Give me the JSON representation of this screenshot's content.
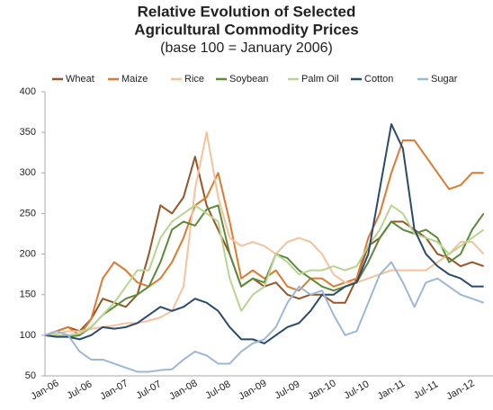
{
  "chart_data": {
    "type": "line",
    "title_lines": [
      "Relative Evolution of Selected",
      "Agricultural Commodity Prices"
    ],
    "subtitle": "(base 100 = January 2006)",
    "categories": [
      "Jan-06",
      null,
      null,
      "Jul-06",
      null,
      null,
      "Jan-07",
      null,
      null,
      "Jul-07",
      null,
      null,
      "Jan-08",
      null,
      null,
      "Jul-08",
      null,
      null,
      "Jan-09",
      null,
      null,
      "Jul-09",
      null,
      null,
      "Jan-10",
      null,
      null,
      "Jul-10",
      null,
      null,
      "Jan-11",
      null,
      null,
      "Jul-11",
      null,
      null,
      "Jan-12",
      null,
      null
    ],
    "ylim": [
      50,
      400
    ],
    "yticks": [
      50,
      100,
      150,
      200,
      250,
      300,
      350,
      400
    ],
    "grid": false,
    "legend": "top",
    "series": [
      {
        "name": "Wheat",
        "color": "#9a5424",
        "values": [
          100,
          105,
          110,
          105,
          120,
          145,
          140,
          135,
          150,
          200,
          260,
          250,
          270,
          320,
          260,
          230,
          200,
          160,
          170,
          160,
          165,
          150,
          145,
          150,
          150,
          140,
          140,
          170,
          210,
          220,
          240,
          240,
          230,
          220,
          200,
          195,
          185,
          190,
          185
        ]
      },
      {
        "name": "Maize",
        "color": "#e0792e",
        "values": [
          100,
          105,
          110,
          100,
          120,
          170,
          190,
          180,
          165,
          160,
          170,
          190,
          220,
          260,
          270,
          300,
          240,
          170,
          180,
          170,
          180,
          160,
          155,
          170,
          170,
          160,
          165,
          170,
          220,
          250,
          300,
          340,
          340,
          320,
          300,
          280,
          285,
          300,
          300
        ]
      },
      {
        "name": "Rice",
        "color": "#f5c29c",
        "values": [
          100,
          102,
          105,
          105,
          108,
          110,
          112,
          115,
          115,
          118,
          122,
          130,
          160,
          280,
          350,
          270,
          220,
          210,
          215,
          210,
          200,
          215,
          220,
          215,
          200,
          175,
          165,
          165,
          170,
          175,
          180,
          180,
          180,
          180,
          190,
          200,
          215,
          215,
          200
        ]
      },
      {
        "name": "Soybean",
        "color": "#5b8b3a",
        "values": [
          100,
          100,
          98,
          100,
          110,
          125,
          135,
          145,
          150,
          160,
          190,
          230,
          240,
          235,
          255,
          260,
          200,
          160,
          170,
          165,
          200,
          195,
          180,
          170,
          160,
          155,
          160,
          165,
          190,
          220,
          240,
          230,
          225,
          230,
          220,
          190,
          200,
          230,
          250
        ]
      },
      {
        "name": "Palm Oil",
        "color": "#b7d590",
        "values": [
          100,
          100,
          100,
          102,
          110,
          125,
          140,
          160,
          180,
          180,
          220,
          240,
          250,
          260,
          250,
          240,
          170,
          130,
          150,
          160,
          200,
          190,
          175,
          180,
          180,
          185,
          180,
          185,
          210,
          230,
          260,
          250,
          225,
          220,
          215,
          200,
          210,
          220,
          230
        ]
      },
      {
        "name": "Cotton",
        "color": "#2b4a6f",
        "values": [
          100,
          98,
          98,
          95,
          100,
          110,
          108,
          110,
          115,
          125,
          135,
          130,
          135,
          145,
          140,
          130,
          110,
          95,
          95,
          90,
          100,
          110,
          115,
          130,
          150,
          150,
          160,
          165,
          200,
          280,
          360,
          330,
          230,
          200,
          185,
          175,
          170,
          160,
          160
        ]
      },
      {
        "name": "Sugar",
        "color": "#9db8d6",
        "values": [
          100,
          105,
          100,
          80,
          70,
          70,
          65,
          60,
          55,
          55,
          57,
          58,
          70,
          80,
          75,
          65,
          65,
          80,
          90,
          95,
          110,
          140,
          160,
          150,
          155,
          125,
          100,
          105,
          140,
          175,
          190,
          165,
          135,
          165,
          170,
          160,
          150,
          145,
          140
        ]
      }
    ]
  }
}
